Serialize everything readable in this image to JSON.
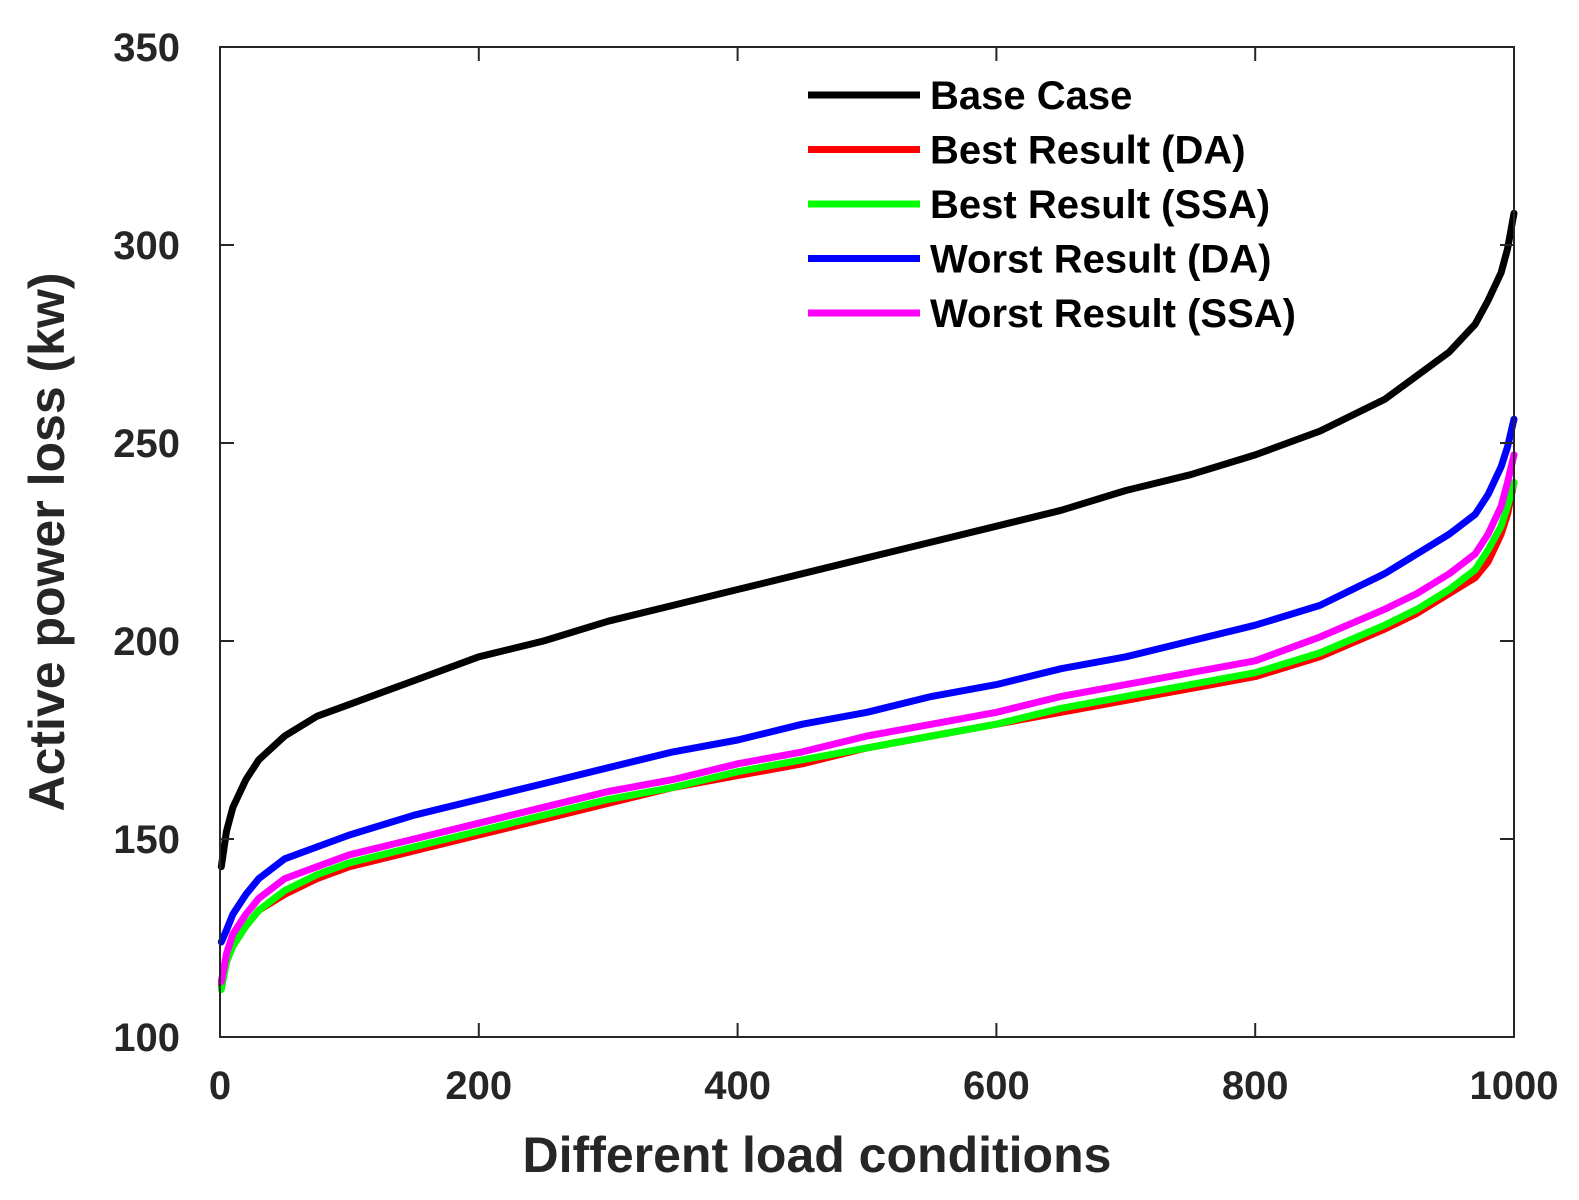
{
  "chart_data": {
    "type": "line",
    "title": "",
    "xlabel": "Different load conditions",
    "ylabel": "Active power loss (kw)",
    "xlim": [
      0,
      1000
    ],
    "ylim": [
      100,
      350
    ],
    "xticks": [
      0,
      200,
      400,
      600,
      800,
      1000
    ],
    "yticks": [
      100,
      150,
      200,
      250,
      300,
      350
    ],
    "xtick_labels": [
      "0",
      "200",
      "400",
      "600",
      "800",
      "1000"
    ],
    "ytick_labels": [
      "100",
      "150",
      "200",
      "250",
      "300",
      "350"
    ],
    "grid": false,
    "legend_position": "top-right",
    "x": [
      1,
      5,
      10,
      20,
      30,
      50,
      75,
      100,
      150,
      200,
      250,
      300,
      350,
      400,
      450,
      500,
      550,
      600,
      650,
      700,
      750,
      800,
      850,
      900,
      925,
      950,
      970,
      980,
      990,
      995,
      1000
    ],
    "series": [
      {
        "name": "Base Case",
        "color": "#000000",
        "values": [
          143,
          152,
          158,
          165,
          170,
          176,
          181,
          184,
          190,
          196,
          200,
          205,
          209,
          213,
          217,
          221,
          225,
          229,
          233,
          238,
          242,
          247,
          253,
          261,
          267,
          273,
          280,
          286,
          293,
          299,
          308
        ]
      },
      {
        "name": "Best Result (DA)",
        "color": "#ff0000",
        "values": [
          113,
          119,
          123,
          128,
          132,
          136,
          140,
          143,
          147,
          151,
          155,
          159,
          163,
          166,
          169,
          173,
          176,
          179,
          182,
          185,
          188,
          191,
          196,
          203,
          207,
          212,
          216,
          220,
          227,
          232,
          240
        ]
      },
      {
        "name": "Best Result (SSA)",
        "color": "#00ff00",
        "values": [
          112,
          119,
          123,
          128,
          132,
          137,
          141,
          144,
          148,
          152,
          156,
          160,
          163,
          167,
          170,
          173,
          176,
          179,
          183,
          186,
          189,
          192,
          197,
          204,
          208,
          213,
          218,
          223,
          229,
          234,
          240
        ]
      },
      {
        "name": "Worst Result (DA)",
        "color": "#0000ff",
        "values": [
          124,
          127,
          131,
          136,
          140,
          145,
          148,
          151,
          156,
          160,
          164,
          168,
          172,
          175,
          179,
          182,
          186,
          189,
          193,
          196,
          200,
          204,
          209,
          217,
          222,
          227,
          232,
          237,
          244,
          249,
          256
        ]
      },
      {
        "name": "Worst Result (SSA)",
        "color": "#ff00ff",
        "values": [
          114,
          121,
          126,
          131,
          135,
          140,
          143,
          146,
          150,
          154,
          158,
          162,
          165,
          169,
          172,
          176,
          179,
          182,
          186,
          189,
          192,
          195,
          201,
          208,
          212,
          217,
          222,
          227,
          234,
          240,
          247
        ]
      }
    ]
  }
}
